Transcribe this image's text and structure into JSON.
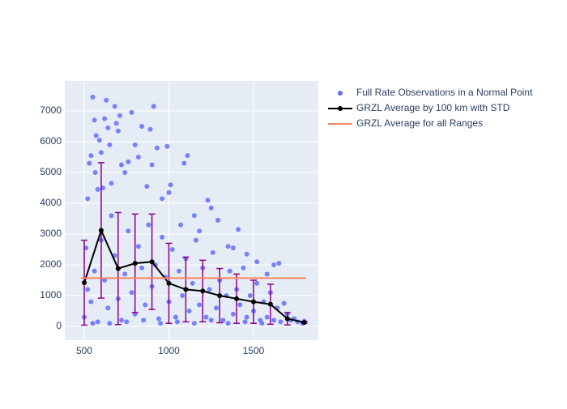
{
  "chart_data": {
    "type": "scatter-line",
    "xlim": [
      385,
      1883
    ],
    "ylim": [
      -447,
      7974
    ],
    "xticks": [
      500,
      1000,
      1500
    ],
    "yticks": [
      0,
      1000,
      2000,
      3000,
      4000,
      5000,
      6000,
      7000
    ],
    "grid": true,
    "series": [
      {
        "name": "Full Rate Observations in a Normal Point",
        "color": "#636efa",
        "mode": "markers",
        "x": [
          510,
          520,
          530,
          540,
          550,
          560,
          565,
          570,
          580,
          590,
          600,
          610,
          620,
          630,
          640,
          650,
          660,
          680,
          690,
          700,
          710,
          720,
          740,
          760,
          780,
          800,
          820,
          840,
          870,
          890,
          900,
          910,
          930,
          960,
          990,
          1000,
          1010,
          1070,
          1090,
          1110,
          1150,
          1180,
          1230,
          1250,
          1290,
          1350,
          1380,
          1410,
          1460,
          1520,
          1580,
          1620,
          1650,
          1680,
          1720,
          1760,
          1790,
          1800,
          500,
          520,
          540,
          560,
          580,
          600,
          620,
          640,
          660,
          680,
          700,
          720,
          740,
          760,
          780,
          800,
          820,
          840,
          860,
          880,
          900,
          920,
          940,
          960,
          980,
          1000,
          1020,
          1040,
          1060,
          1080,
          1100,
          1120,
          1140,
          1160,
          1180,
          1200,
          1220,
          1240,
          1260,
          1280,
          1300,
          1320,
          1340,
          1360,
          1380,
          1400,
          1420,
          1440,
          1460,
          1480,
          1500,
          1520,
          1540,
          1560,
          1580,
          1600,
          1620,
          1640,
          1660,
          1700,
          1740,
          550,
          650,
          750,
          850,
          950,
          1050,
          1150,
          1250,
          1350,
          1450,
          1550
        ],
        "values": [
          2550,
          4150,
          5300,
          5550,
          7450,
          6700,
          5000,
          6200,
          4450,
          6050,
          5650,
          4500,
          6750,
          7350,
          6450,
          5900,
          4650,
          7150,
          6600,
          6350,
          6850,
          5250,
          5000,
          5350,
          6950,
          5900,
          5500,
          6500,
          4550,
          6400,
          5250,
          7150,
          5800,
          4150,
          5850,
          4350,
          4600,
          3300,
          5300,
          5550,
          3600,
          3100,
          4100,
          3850,
          3450,
          2600,
          2550,
          3150,
          2350,
          2100,
          1700,
          2000,
          2050,
          750,
          200,
          150,
          100,
          170,
          300,
          1200,
          800,
          1800,
          150,
          2800,
          1500,
          600,
          3600,
          2300,
          900,
          200,
          1700,
          3100,
          1100,
          400,
          2600,
          1900,
          700,
          3300,
          1300,
          2000,
          250,
          2900,
          1600,
          800,
          2500,
          300,
          1800,
          1000,
          2200,
          500,
          1400,
          2800,
          700,
          1900,
          300,
          1200,
          2400,
          600,
          1500,
          200,
          1000,
          1800,
          400,
          1200,
          700,
          1900,
          300,
          1000,
          500,
          1400,
          200,
          800,
          300,
          1100,
          200,
          600,
          150,
          400,
          250,
          100,
          100,
          150,
          200,
          100,
          150,
          100,
          200,
          100,
          150,
          100
        ]
      },
      {
        "name": "GRZL Average by 100 km with STD",
        "color": "#000000",
        "error_color": "#8b008b",
        "mode": "lines+markers",
        "x": [
          500,
          600,
          700,
          800,
          900,
          1000,
          1100,
          1200,
          1300,
          1400,
          1500,
          1600,
          1700,
          1800
        ],
        "values": [
          1420,
          3120,
          1880,
          2050,
          2100,
          1400,
          1200,
          1150,
          1000,
          900,
          800,
          720,
          250,
          130
        ],
        "error": [
          1380,
          2200,
          1820,
          1600,
          1550,
          1300,
          1050,
          1000,
          880,
          800,
          700,
          650,
          200,
          30
        ]
      },
      {
        "name": "GRZL Average for all Ranges",
        "color": "#fa8560",
        "mode": "lines",
        "x": [
          480,
          1810
        ],
        "values": [
          1570,
          1570
        ]
      }
    ]
  }
}
